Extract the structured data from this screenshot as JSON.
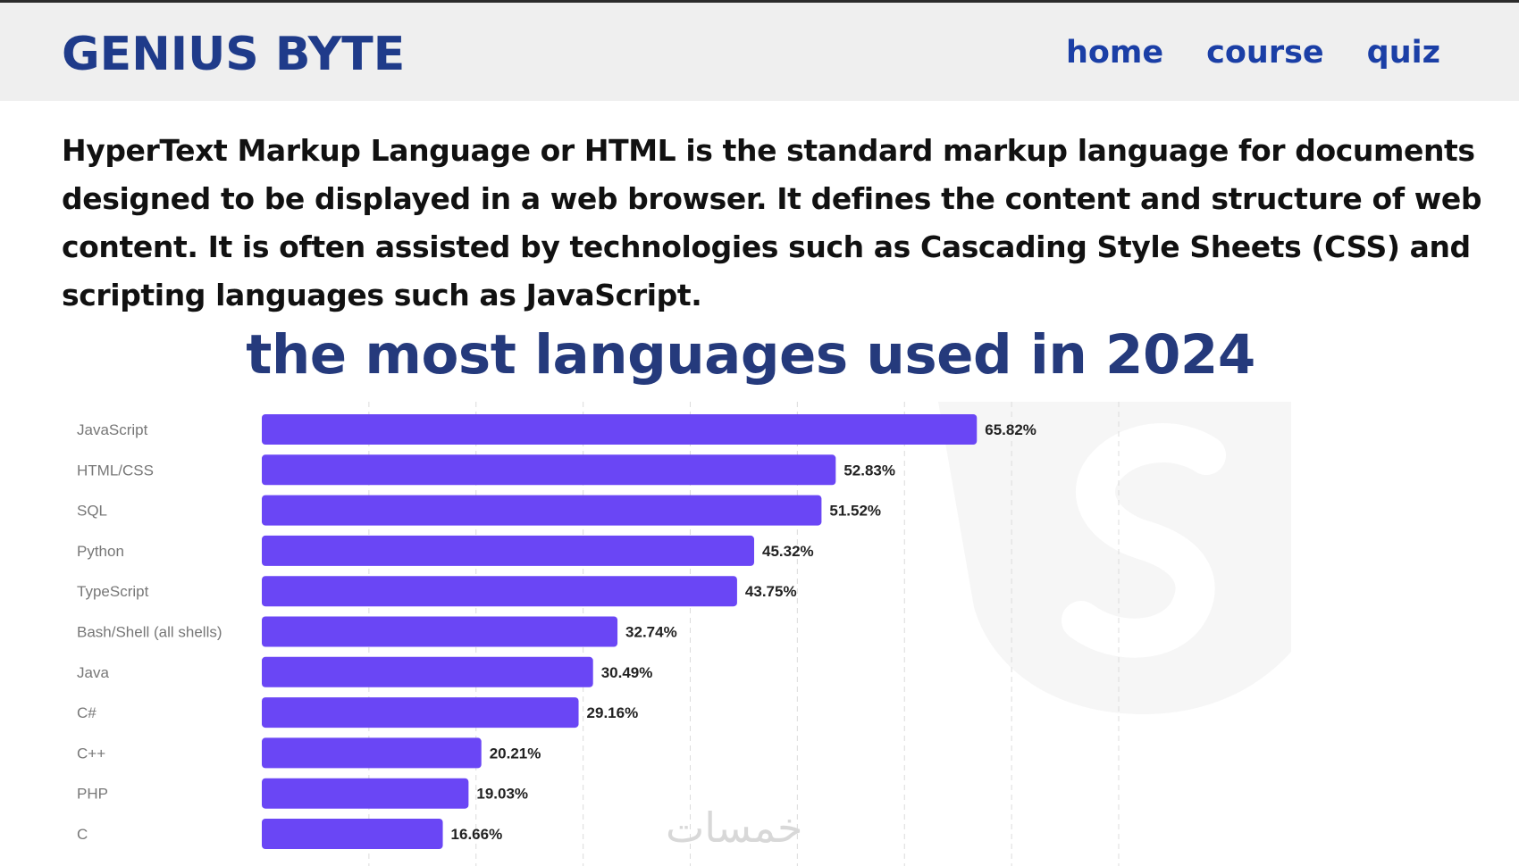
{
  "header": {
    "brand": "GENIUS BYTE",
    "nav": [
      "home",
      "course",
      "quiz"
    ]
  },
  "intro_text": "HyperText Markup Language or HTML is the standard markup language for documents designed to be displayed in a web browser. It defines the content and structure of web content. It is often assisted by technologies such as Cascading Style Sheets (CSS) and scripting languages such as JavaScript.",
  "chart_title": "the most languages used in 2024",
  "watermark_text": "خمسات",
  "colors": {
    "bar": "#6a46f5",
    "brand": "#1f3b8a",
    "nav": "#1b3fa6",
    "title": "#253a7c"
  },
  "chart_data": {
    "type": "bar",
    "orientation": "horizontal",
    "title": "the most languages used in 2024",
    "categories": [
      "JavaScript",
      "HTML/CSS",
      "SQL",
      "Python",
      "TypeScript",
      "Bash/Shell (all shells)",
      "Java",
      "C#",
      "C++",
      "PHP",
      "C"
    ],
    "values": [
      65.82,
      52.83,
      51.52,
      45.32,
      43.75,
      32.74,
      30.49,
      29.16,
      20.21,
      19.03,
      16.66
    ],
    "labels": [
      "65.82%",
      "52.83%",
      "51.52%",
      "45.32%",
      "43.75%",
      "32.74%",
      "30.49%",
      "29.16%",
      "20.21%",
      "19.03%",
      "16.66%"
    ],
    "xlim": [
      0,
      80
    ],
    "grid": "vertical dashed"
  }
}
